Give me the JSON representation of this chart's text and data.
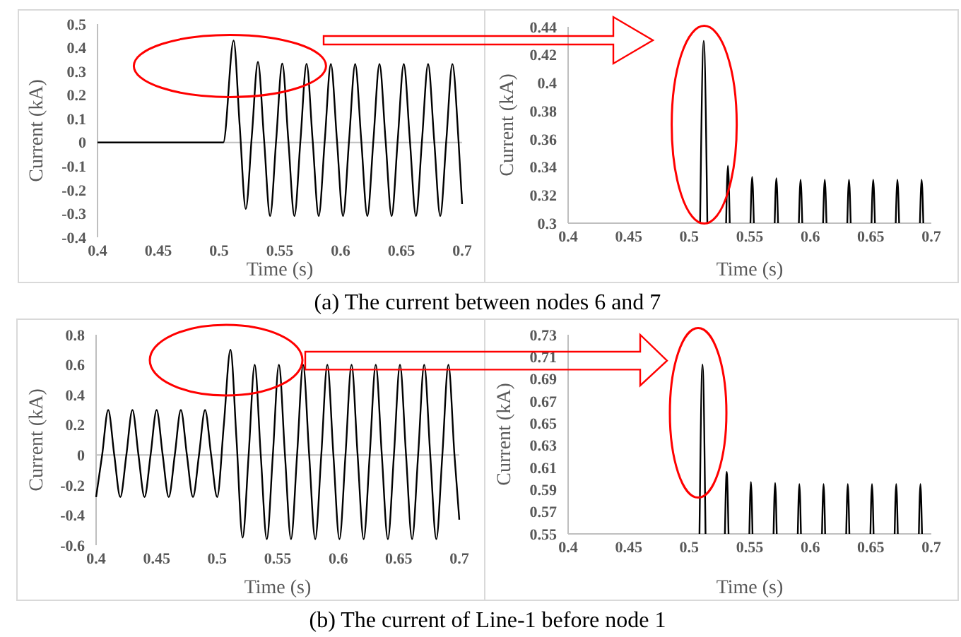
{
  "chart_data": [
    {
      "type": "line",
      "xlabel": "Time (s)",
      "ylabel": "Current (kA)",
      "annotations": [
        "(a) The current between nodes 6 and 7"
      ],
      "xlim": [
        0.4,
        0.7
      ],
      "xticks": [
        0.4,
        0.45,
        0.5,
        0.55,
        0.6,
        0.65,
        0.7
      ],
      "ylim": [
        -0.4,
        0.5
      ],
      "yticks": [
        -0.4,
        -0.3,
        -0.2,
        -0.1,
        0,
        0.1,
        0.2,
        0.3,
        0.4,
        0.5
      ],
      "grid": false,
      "ref_lines": [
        {
          "axis": "y",
          "value": 0,
          "color": "#bfbfbf"
        }
      ],
      "x": [
        0.4,
        0.5035,
        0.512,
        0.517,
        0.522,
        0.527,
        0.532,
        0.537,
        0.542,
        0.547,
        0.552,
        0.557,
        0.562,
        0.567,
        0.572,
        0.577,
        0.582,
        0.587,
        0.592,
        0.597,
        0.602,
        0.607,
        0.612,
        0.617,
        0.622,
        0.627,
        0.632,
        0.637,
        0.642,
        0.647,
        0.652,
        0.657,
        0.662,
        0.667,
        0.672,
        0.677,
        0.682,
        0.687,
        0.692,
        0.697,
        0.7
      ],
      "series": [
        {
          "color": "#000000",
          "values": [
            0,
            0,
            0.43,
            0.07,
            -0.28,
            0.03,
            0.34,
            0.015,
            -0.31,
            0.01,
            0.333,
            0.01,
            -0.31,
            0.01,
            0.332,
            0.01,
            -0.31,
            0.01,
            0.331,
            0.01,
            -0.31,
            0.01,
            0.331,
            0.01,
            -0.31,
            0.01,
            0.331,
            0.01,
            -0.31,
            0.01,
            0.331,
            0.01,
            -0.31,
            0.01,
            0.331,
            0.01,
            -0.31,
            0.01,
            0.331,
            0.01,
            -0.26
          ]
        }
      ]
    },
    {
      "type": "line",
      "xlabel": "Time (s)",
      "ylabel": "Current (kA)",
      "xlim": [
        0.4,
        0.7
      ],
      "xticks": [
        0.4,
        0.45,
        0.5,
        0.55,
        0.6,
        0.65,
        0.7
      ],
      "ylim": [
        0.3,
        0.44
      ],
      "yticks": [
        0.3,
        0.32,
        0.34,
        0.36,
        0.38,
        0.4,
        0.42,
        0.44
      ],
      "grid": false,
      "x": [
        0.509,
        0.512,
        0.515,
        0.52,
        0.5305,
        0.532,
        0.5335,
        0.54,
        0.5506,
        0.552,
        0.5534,
        0.56,
        0.5706,
        0.572,
        0.5734,
        0.58,
        0.5906,
        0.592,
        0.5934,
        0.6,
        0.6106,
        0.612,
        0.6134,
        0.62,
        0.6306,
        0.632,
        0.6334,
        0.64,
        0.6506,
        0.652,
        0.6534,
        0.66,
        0.6706,
        0.672,
        0.6734,
        0.68,
        0.6906,
        0.692,
        0.6934
      ],
      "series": [
        {
          "color": "#000000",
          "values": [
            0.3,
            0.43,
            0.3,
            null,
            0.3,
            0.341,
            0.3,
            null,
            0.3,
            0.333,
            0.3,
            null,
            0.3,
            0.332,
            0.3,
            null,
            0.3,
            0.331,
            0.3,
            null,
            0.3,
            0.331,
            0.3,
            null,
            0.3,
            0.331,
            0.3,
            null,
            0.3,
            0.331,
            0.3,
            null,
            0.3,
            0.331,
            0.3,
            null,
            0.3,
            0.331,
            0.3
          ]
        }
      ]
    },
    {
      "type": "line",
      "xlabel": "Time (s)",
      "ylabel": "Current (kA)",
      "annotations": [
        "(b) The current of Line-1 before node 1"
      ],
      "xlim": [
        0.4,
        0.7
      ],
      "xticks": [
        0.4,
        0.45,
        0.5,
        0.55,
        0.6,
        0.65,
        0.7
      ],
      "ylim": [
        -0.6,
        0.8
      ],
      "yticks": [
        -0.6,
        -0.4,
        -0.2,
        0,
        0.2,
        0.4,
        0.6,
        0.8
      ],
      "grid": false,
      "x": [
        0.4,
        0.405,
        0.41,
        0.415,
        0.42,
        0.425,
        0.43,
        0.435,
        0.44,
        0.445,
        0.45,
        0.455,
        0.46,
        0.465,
        0.47,
        0.475,
        0.48,
        0.485,
        0.49,
        0.495,
        0.5,
        0.5055,
        0.511,
        0.516,
        0.521,
        0.526,
        0.531,
        0.536,
        0.541,
        0.546,
        0.551,
        0.556,
        0.561,
        0.566,
        0.571,
        0.576,
        0.581,
        0.586,
        0.591,
        0.596,
        0.601,
        0.606,
        0.611,
        0.616,
        0.621,
        0.626,
        0.631,
        0.636,
        0.641,
        0.646,
        0.651,
        0.656,
        0.661,
        0.666,
        0.671,
        0.676,
        0.681,
        0.686,
        0.691,
        0.696,
        0.7
      ],
      "series": [
        {
          "color": "#000000",
          "values": [
            -0.28,
            0,
            0.3,
            0,
            -0.28,
            0,
            0.3,
            0,
            -0.28,
            0,
            0.3,
            0,
            -0.28,
            0,
            0.3,
            0,
            -0.28,
            0,
            0.3,
            0,
            -0.28,
            0.2,
            0.7,
            0.1,
            -0.55,
            0,
            0.6,
            0,
            -0.56,
            0,
            0.6,
            0,
            -0.56,
            0,
            0.6,
            0,
            -0.56,
            0,
            0.6,
            0,
            -0.56,
            0,
            0.6,
            0,
            -0.56,
            0,
            0.6,
            0,
            -0.56,
            0,
            0.6,
            0,
            -0.56,
            0,
            0.6,
            0,
            -0.56,
            0,
            0.6,
            0,
            -0.43
          ]
        }
      ],
      "ref_lines": [
        {
          "axis": "y",
          "value": 0,
          "color": "#bfbfbf"
        }
      ]
    },
    {
      "type": "line",
      "xlabel": "Time (s)",
      "ylabel": "Current (kA)",
      "xlim": [
        0.4,
        0.7
      ],
      "xticks": [
        0.4,
        0.45,
        0.5,
        0.55,
        0.6,
        0.65,
        0.7
      ],
      "ylim": [
        0.55,
        0.73
      ],
      "yticks": [
        0.55,
        0.57,
        0.59,
        0.61,
        0.63,
        0.65,
        0.67,
        0.69,
        0.71,
        0.73
      ],
      "grid": false,
      "x": [
        0.5085,
        0.511,
        0.5135,
        0.52,
        0.5295,
        0.531,
        0.5325,
        0.54,
        0.5497,
        0.551,
        0.5523,
        0.56,
        0.5697,
        0.571,
        0.5723,
        0.58,
        0.5897,
        0.591,
        0.5923,
        0.6,
        0.6097,
        0.611,
        0.6123,
        0.62,
        0.6297,
        0.631,
        0.6323,
        0.64,
        0.6497,
        0.651,
        0.6523,
        0.66,
        0.6697,
        0.671,
        0.6723,
        0.68,
        0.6897,
        0.691,
        0.6923
      ],
      "series": [
        {
          "color": "#000000",
          "values": [
            0.55,
            0.703,
            0.55,
            null,
            0.55,
            0.606,
            0.55,
            null,
            0.55,
            0.597,
            0.55,
            null,
            0.55,
            0.596,
            0.55,
            null,
            0.55,
            0.595,
            0.55,
            null,
            0.55,
            0.595,
            0.55,
            null,
            0.55,
            0.595,
            0.55,
            null,
            0.55,
            0.595,
            0.55,
            null,
            0.55,
            0.595,
            0.55,
            null,
            0.55,
            0.595,
            0.55
          ]
        }
      ]
    }
  ]
}
